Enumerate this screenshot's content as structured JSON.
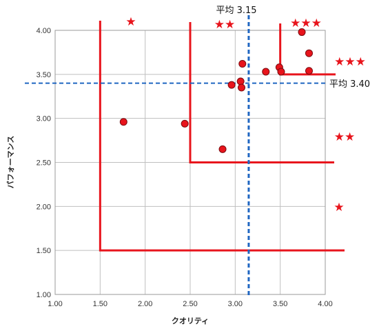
{
  "colors": {
    "accent": "#e8141c",
    "point_fill": "#e8141c",
    "point_stroke": "#7a0a0e",
    "average_line": "#1f66c2",
    "grid": "#bfbfbf",
    "plot_border": "#9a9a9a"
  },
  "chart_data": {
    "type": "scatter",
    "title": "",
    "xlabel": "クオリティ",
    "ylabel": "パフォーマンス",
    "xlim": [
      1.0,
      4.0
    ],
    "ylim": [
      1.0,
      4.0
    ],
    "x_ticks": [
      "1.00",
      "1.50",
      "2.00",
      "2.50",
      "3.00",
      "3.50",
      "4.00"
    ],
    "y_ticks": [
      "1.00",
      "1.50",
      "2.00",
      "2.50",
      "3.00",
      "3.50",
      "4.00"
    ],
    "grid": true,
    "points": [
      {
        "x": 1.76,
        "y": 2.96
      },
      {
        "x": 2.44,
        "y": 2.94
      },
      {
        "x": 2.86,
        "y": 2.65
      },
      {
        "x": 2.96,
        "y": 3.38
      },
      {
        "x": 3.06,
        "y": 3.42
      },
      {
        "x": 3.07,
        "y": 3.35
      },
      {
        "x": 3.08,
        "y": 3.62
      },
      {
        "x": 3.34,
        "y": 3.53
      },
      {
        "x": 3.49,
        "y": 3.58
      },
      {
        "x": 3.51,
        "y": 3.53
      },
      {
        "x": 3.74,
        "y": 3.98
      },
      {
        "x": 3.82,
        "y": 3.74
      },
      {
        "x": 3.82,
        "y": 3.54
      }
    ],
    "average_lines": {
      "x": {
        "value": 3.15,
        "label": "平均 3.15"
      },
      "y": {
        "value": 3.4,
        "label": "平均 3.40"
      }
    },
    "threshold_regions": [
      {
        "x_min": 1.5,
        "y_min": 1.5,
        "stars": "★"
      },
      {
        "x_min": 2.5,
        "y_min": 2.5,
        "stars": "★★"
      },
      {
        "x_min": 3.5,
        "y_min": 3.5,
        "stars": "★★★"
      }
    ],
    "star_labels": {
      "top": [
        "★",
        "★★",
        "★★★"
      ],
      "right": [
        "★★★",
        "★★",
        "★"
      ]
    }
  }
}
